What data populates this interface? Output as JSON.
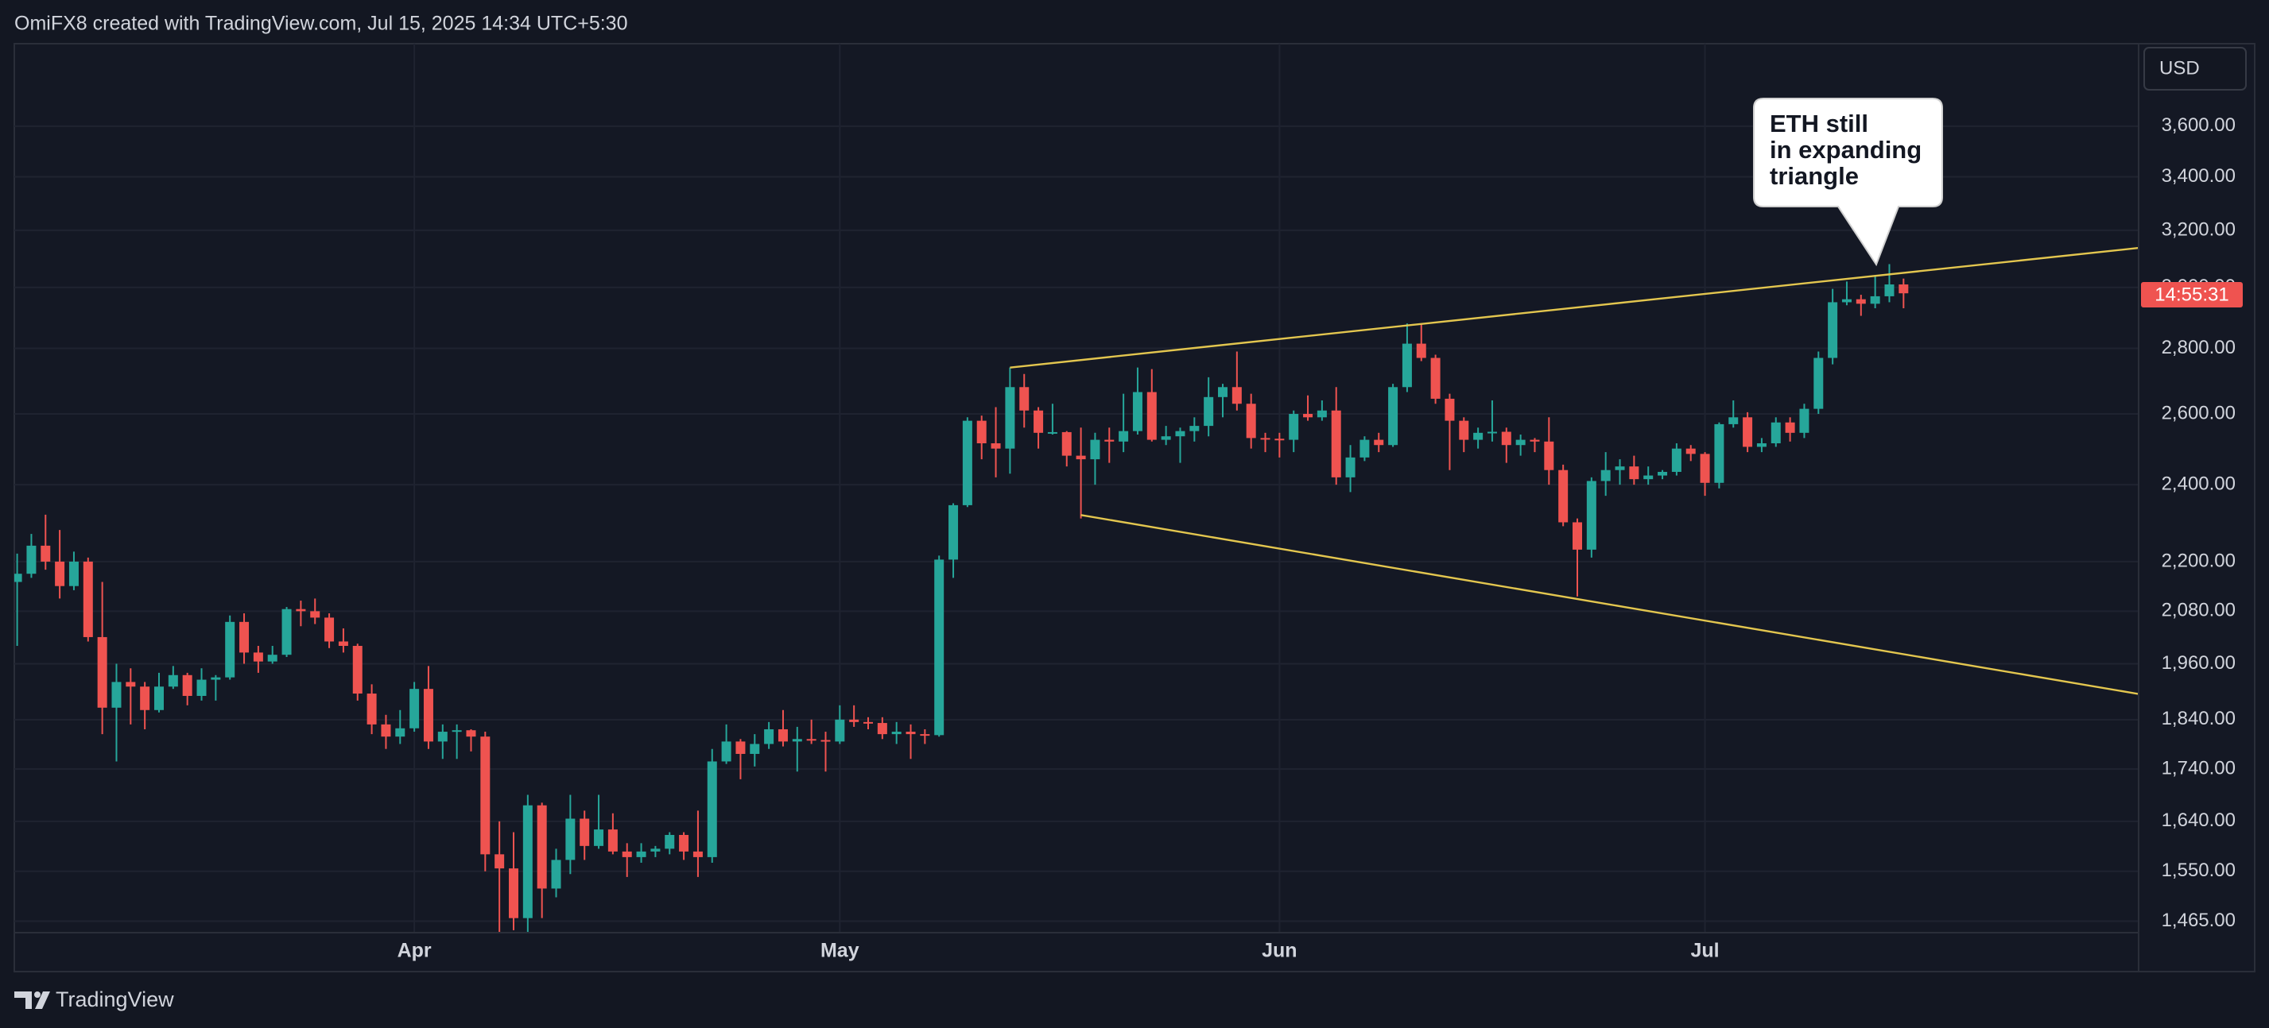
{
  "header": "OmiFX8 created with TradingView.com, Jul 15, 2025 14:34 UTC+5:30",
  "footer": "TradingView",
  "chart_data": {
    "type": "candlestick",
    "currency": "USD",
    "countdown": "14:55:31",
    "annotation": [
      "ETH still",
      "in expanding",
      "triangle"
    ],
    "up_color": "#26a69a",
    "down_color": "#ef5350",
    "log_scale": true,
    "grid": true,
    "categories": [
      null,
      null,
      null,
      null,
      null,
      null,
      null,
      null,
      null,
      null,
      null,
      null,
      null,
      null,
      null,
      null,
      null,
      null,
      null,
      null,
      null,
      null,
      null,
      null,
      null,
      null,
      null,
      null,
      "Apr",
      null,
      null,
      null,
      null,
      null,
      null,
      null,
      null,
      null,
      null,
      null,
      null,
      null,
      null,
      null,
      null,
      null,
      null,
      null,
      null,
      null,
      null,
      null,
      null,
      null,
      null,
      null,
      null,
      null,
      "May",
      null,
      null,
      null,
      null,
      null,
      null,
      null,
      null,
      null,
      null,
      null,
      null,
      null,
      null,
      null,
      null,
      null,
      null,
      null,
      null,
      null,
      null,
      null,
      null,
      null,
      null,
      null,
      null,
      null,
      null,
      "Jun",
      null,
      null,
      null,
      null,
      null,
      null,
      null,
      null,
      null,
      null,
      null,
      null,
      null,
      null,
      null,
      null,
      null,
      null,
      null,
      null,
      null,
      null,
      null,
      null,
      null,
      null,
      null,
      null,
      null,
      "Jul",
      null,
      null,
      null,
      null,
      null,
      null,
      null,
      null,
      null,
      null,
      null,
      null,
      null,
      null
    ],
    "open": [
      2150,
      2170,
      2240,
      2200,
      2140,
      2200,
      2020,
      1865,
      1920,
      1910,
      1860,
      1910,
      1935,
      1890,
      1925,
      1930,
      2055,
      1985,
      1965,
      1980,
      2085,
      2080,
      2065,
      2010,
      2000,
      1895,
      1830,
      1805,
      1822,
      1905,
      1795,
      1815,
      1818,
      1805,
      1580,
      1555,
      1470,
      1670,
      1520,
      1570,
      1645,
      1595,
      1625,
      1585,
      1575,
      1585,
      1590,
      1615,
      1585,
      1575,
      1755,
      1795,
      1770,
      1790,
      1820,
      1795,
      1800,
      1798,
      1795,
      1840,
      1835,
      1833,
      1810,
      1815,
      1810,
      1808,
      2205,
      2345,
      2580,
      2515,
      2500,
      2680,
      2610,
      2545,
      2547,
      2480,
      2470,
      2525,
      2520,
      2550,
      2665,
      2525,
      2535,
      2550,
      2565,
      2650,
      2680,
      2630,
      2530,
      2528,
      2525,
      2600,
      2590,
      2610,
      2420,
      2475,
      2525,
      2510,
      2680,
      2815,
      2770,
      2645,
      2580,
      2525,
      2545,
      2548,
      2510,
      2525,
      2520,
      2440,
      2300,
      2230,
      2410,
      2440,
      2450,
      2415,
      2425,
      2435,
      2500,
      2485,
      2405,
      2570,
      2590,
      2505,
      2515,
      2575,
      2545,
      2615,
      2770,
      2950,
      2960,
      2945,
      2970,
      3010
    ],
    "high": [
      2220,
      2270,
      2320,
      2280,
      2225,
      2210,
      2150,
      1960,
      1950,
      1920,
      1940,
      1955,
      1940,
      1950,
      1935,
      2070,
      2075,
      2000,
      2000,
      2090,
      2105,
      2110,
      2075,
      2040,
      2005,
      1915,
      1850,
      1860,
      1920,
      1955,
      1830,
      1830,
      1820,
      1815,
      1640,
      1620,
      1690,
      1675,
      1590,
      1690,
      1660,
      1690,
      1655,
      1600,
      1600,
      1595,
      1620,
      1620,
      1660,
      1780,
      1830,
      1800,
      1810,
      1835,
      1860,
      1825,
      1840,
      1815,
      1870,
      1870,
      1845,
      1845,
      1835,
      1830,
      1820,
      2215,
      2350,
      2590,
      2595,
      2620,
      2740,
      2720,
      2620,
      2630,
      2550,
      2560,
      2545,
      2560,
      2660,
      2740,
      2735,
      2565,
      2560,
      2590,
      2710,
      2690,
      2790,
      2660,
      2545,
      2545,
      2610,
      2655,
      2640,
      2680,
      2510,
      2535,
      2545,
      2690,
      2880,
      2880,
      2780,
      2660,
      2590,
      2560,
      2640,
      2560,
      2540,
      2530,
      2590,
      2455,
      2310,
      2420,
      2490,
      2470,
      2480,
      2450,
      2440,
      2515,
      2510,
      2490,
      2575,
      2640,
      2605,
      2530,
      2590,
      2590,
      2630,
      2790,
      2995,
      3020,
      2975,
      3040,
      3080,
      3030
    ],
    "low": [
      2000,
      2160,
      2180,
      2110,
      2130,
      2010,
      1810,
      1755,
      1830,
      1820,
      1855,
      1905,
      1870,
      1880,
      1880,
      1925,
      1960,
      1940,
      1960,
      1975,
      2045,
      2050,
      1995,
      1985,
      1880,
      1810,
      1780,
      1790,
      1815,
      1780,
      1760,
      1760,
      1775,
      1550,
      1410,
      1450,
      1385,
      1470,
      1505,
      1545,
      1570,
      1590,
      1580,
      1540,
      1565,
      1575,
      1580,
      1570,
      1540,
      1565,
      1750,
      1720,
      1745,
      1780,
      1785,
      1735,
      1790,
      1735,
      1790,
      1825,
      1820,
      1800,
      1790,
      1760,
      1790,
      1805,
      2160,
      2340,
      2470,
      2420,
      2430,
      2560,
      2500,
      2540,
      2450,
      2310,
      2400,
      2460,
      2490,
      2540,
      2520,
      2510,
      2460,
      2520,
      2535,
      2590,
      2610,
      2500,
      2490,
      2475,
      2490,
      2580,
      2580,
      2400,
      2380,
      2465,
      2490,
      2505,
      2665,
      2760,
      2630,
      2440,
      2490,
      2500,
      2520,
      2460,
      2480,
      2490,
      2400,
      2290,
      2115,
      2210,
      2370,
      2400,
      2400,
      2400,
      2415,
      2425,
      2465,
      2370,
      2390,
      2560,
      2490,
      2490,
      2505,
      2520,
      2530,
      2600,
      2750,
      2940,
      2905,
      2930,
      2950,
      2930
    ],
    "close": [
      2170,
      2240,
      2200,
      2140,
      2200,
      2020,
      1865,
      1920,
      1910,
      1860,
      1910,
      1935,
      1890,
      1925,
      1930,
      2055,
      1985,
      1965,
      1980,
      2085,
      2080,
      2065,
      2010,
      2000,
      1895,
      1830,
      1805,
      1822,
      1905,
      1795,
      1815,
      1818,
      1805,
      1580,
      1555,
      1470,
      1670,
      1520,
      1570,
      1645,
      1595,
      1625,
      1585,
      1575,
      1585,
      1590,
      1615,
      1585,
      1575,
      1755,
      1795,
      1770,
      1790,
      1820,
      1795,
      1800,
      1798,
      1795,
      1840,
      1835,
      1833,
      1810,
      1815,
      1810,
      1808,
      2205,
      2345,
      2580,
      2515,
      2500,
      2680,
      2610,
      2545,
      2547,
      2480,
      2470,
      2525,
      2520,
      2550,
      2665,
      2525,
      2535,
      2550,
      2565,
      2650,
      2680,
      2630,
      2530,
      2528,
      2525,
      2600,
      2590,
      2610,
      2420,
      2475,
      2525,
      2510,
      2680,
      2815,
      2770,
      2645,
      2580,
      2525,
      2545,
      2548,
      2510,
      2525,
      2520,
      2440,
      2300,
      2230,
      2410,
      2440,
      2450,
      2415,
      2425,
      2435,
      2500,
      2485,
      2405,
      2570,
      2590,
      2505,
      2515,
      2575,
      2545,
      2615,
      2770,
      2950,
      2960,
      2945,
      2970,
      3010,
      2980
    ],
    "trendlines": [
      {
        "color": "#e3c64f",
        "x": [
          70,
          149.6
        ],
        "values": [
          2740,
          3137
        ]
      },
      {
        "color": "#e3c64f",
        "x": [
          75,
          149.6
        ],
        "values": [
          2319,
          1894
        ]
      }
    ],
    "ylim": [
      1446,
      3952
    ],
    "yticks": [
      {
        "value": 1465,
        "label": "1,465.00"
      },
      {
        "value": 1550,
        "label": "1,550.00"
      },
      {
        "value": 1640,
        "label": "1,640.00"
      },
      {
        "value": 1740,
        "label": "1,740.00"
      },
      {
        "value": 1840,
        "label": "1,840.00"
      },
      {
        "value": 1960,
        "label": "1,960.00"
      },
      {
        "value": 2080,
        "label": "2,080.00"
      },
      {
        "value": 2200,
        "label": "2,200.00"
      },
      {
        "value": 2400,
        "label": "2,400.00"
      },
      {
        "value": 2600,
        "label": "2,600.00"
      },
      {
        "value": 2800,
        "label": "2,800.00"
      },
      {
        "value": 3000,
        "label": "3,000.00"
      },
      {
        "value": 3200,
        "label": "3,200.00"
      },
      {
        "value": 3400,
        "label": "3,400.00"
      },
      {
        "value": 3600,
        "label": "3,600.00"
      }
    ]
  }
}
